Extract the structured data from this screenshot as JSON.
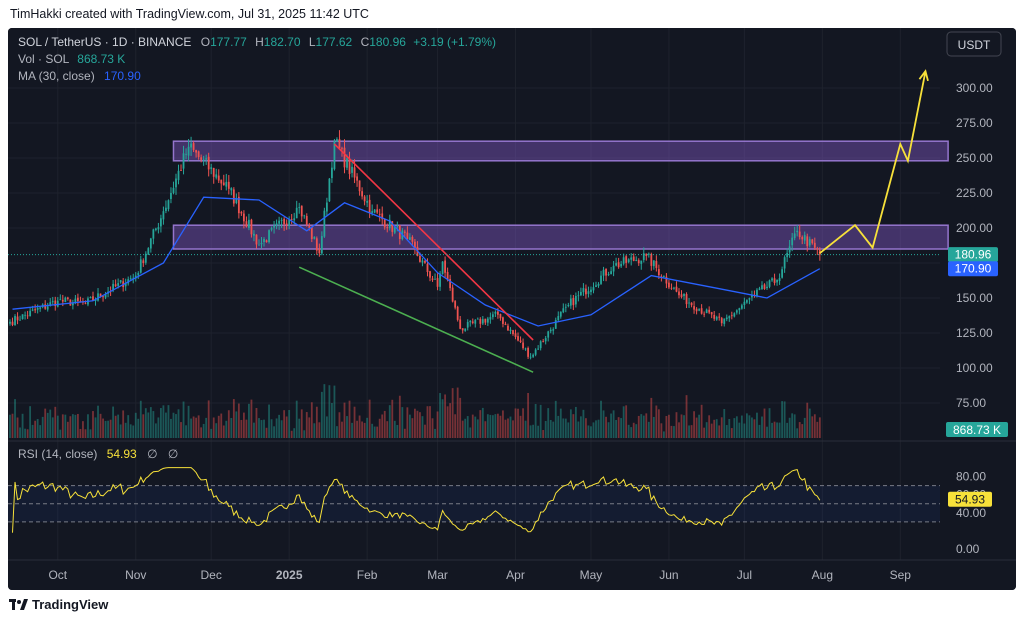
{
  "attribution": "TimHakki created with TradingView.com, Jul 31, 2025 11:42 UTC",
  "brand": "TradingView",
  "currency_button": "USDT",
  "header": {
    "symbol": "SOL / TetherUS · 1D · BINANCE",
    "o_label": "O",
    "o_value": "177.77",
    "h_label": "H",
    "h_value": "182.70",
    "l_label": "L",
    "l_value": "177.62",
    "c_label": "C",
    "c_value": "180.96",
    "change": "+3.19 (+1.79%)",
    "vol_label": "Vol · SOL",
    "vol_value": "868.73 K",
    "ma_label": "MA (30, close)",
    "ma_value": "170.90"
  },
  "rsi_header": {
    "label": "RSI (14, close)",
    "value": "54.93",
    "sym1": "∅",
    "sym2": "∅"
  },
  "price_tags": {
    "close": "180.96",
    "ma": "170.90",
    "volume": "868.73 K",
    "rsi": "54.93"
  },
  "colors": {
    "up": "#26a69a",
    "down": "#ef5350",
    "ma": "#2962ff",
    "rsi": "#f7e13a",
    "zone": "#7e57c2",
    "resistance": "#f23645",
    "support": "#4caf50",
    "projection": "#f7e13a"
  },
  "chart_data": {
    "type": "candlestick",
    "symbol": "SOL / TetherUS",
    "interval": "1D",
    "price_axis": {
      "ticks": [
        "300.00",
        "275.00",
        "250.00",
        "225.00",
        "200.00",
        "175.00",
        "150.00",
        "125.00",
        "100.00",
        "75.00"
      ],
      "range": [
        60,
        320
      ]
    },
    "time_axis": {
      "labels": [
        "Oct",
        "Nov",
        "Dec",
        "2025",
        "Feb",
        "Mar",
        "Apr",
        "May",
        "Jun",
        "Jul",
        "Aug",
        "Sep"
      ]
    },
    "rsi": {
      "ticks": [
        "80.00",
        "60.00",
        "40.00",
        "0.00"
      ],
      "bands": [
        70,
        30
      ],
      "mid": 50,
      "last": 54.93
    },
    "zones": [
      {
        "name": "upper resistance zone",
        "low": 248,
        "high": 262,
        "start": "2024-11-16",
        "end": "2025-09-20"
      },
      {
        "name": "lower resistance zone",
        "low": 185,
        "high": 202,
        "start": "2024-11-16",
        "end": "2025-09-20"
      }
    ],
    "trendlines": [
      {
        "type": "resistance",
        "from": {
          "date": "2025-01-19",
          "price": 260
        },
        "to": {
          "date": "2025-04-08",
          "price": 120
        }
      },
      {
        "type": "support",
        "from": {
          "date": "2025-01-05",
          "price": 172
        },
        "to": {
          "date": "2025-04-08",
          "price": 97
        }
      }
    ],
    "projection": [
      {
        "date": "2025-07-31",
        "price": 182
      },
      {
        "date": "2025-08-14",
        "price": 202
      },
      {
        "date": "2025-08-21",
        "price": 186
      },
      {
        "date": "2025-09-01",
        "price": 260
      },
      {
        "date": "2025-09-04",
        "price": 248
      },
      {
        "date": "2025-09-11",
        "price": 312
      }
    ],
    "key_points": [
      {
        "date": "2024-09-12",
        "close": 133
      },
      {
        "date": "2024-10-01",
        "close": 148
      },
      {
        "date": "2024-10-12",
        "close": 146
      },
      {
        "date": "2024-11-01",
        "close": 166
      },
      {
        "date": "2024-11-12",
        "close": 212
      },
      {
        "date": "2024-11-22",
        "close": 258
      },
      {
        "date": "2024-12-08",
        "close": 228
      },
      {
        "date": "2024-12-20",
        "close": 188
      },
      {
        "date": "2025-01-05",
        "close": 215
      },
      {
        "date": "2025-01-13",
        "close": 182
      },
      {
        "date": "2025-01-19",
        "close": 262
      },
      {
        "date": "2025-02-03",
        "close": 212
      },
      {
        "date": "2025-02-17",
        "close": 192
      },
      {
        "date": "2025-03-01",
        "close": 158
      },
      {
        "date": "2025-03-03",
        "close": 176
      },
      {
        "date": "2025-03-10",
        "close": 128
      },
      {
        "date": "2025-03-25",
        "close": 138
      },
      {
        "date": "2025-04-07",
        "close": 108
      },
      {
        "date": "2025-04-22",
        "close": 145
      },
      {
        "date": "2025-05-10",
        "close": 173
      },
      {
        "date": "2025-05-23",
        "close": 180
      },
      {
        "date": "2025-06-05",
        "close": 152
      },
      {
        "date": "2025-06-22",
        "close": 132
      },
      {
        "date": "2025-07-05",
        "close": 152
      },
      {
        "date": "2025-07-14",
        "close": 163
      },
      {
        "date": "2025-07-22",
        "close": 198
      },
      {
        "date": "2025-07-31",
        "close": 180.96
      }
    ],
    "ma30_points": [
      {
        "date": "2024-09-13",
        "value": 142
      },
      {
        "date": "2024-10-15",
        "value": 148
      },
      {
        "date": "2024-11-12",
        "value": 175
      },
      {
        "date": "2024-11-28",
        "value": 222
      },
      {
        "date": "2024-12-20",
        "value": 220
      },
      {
        "date": "2025-01-08",
        "value": 198
      },
      {
        "date": "2025-01-23",
        "value": 218
      },
      {
        "date": "2025-02-10",
        "value": 205
      },
      {
        "date": "2025-03-01",
        "value": 168
      },
      {
        "date": "2025-03-20",
        "value": 145
      },
      {
        "date": "2025-04-10",
        "value": 130
      },
      {
        "date": "2025-05-01",
        "value": 138
      },
      {
        "date": "2025-05-25",
        "value": 166
      },
      {
        "date": "2025-06-20",
        "value": 157
      },
      {
        "date": "2025-07-10",
        "value": 150
      },
      {
        "date": "2025-07-31",
        "value": 170.9
      }
    ],
    "volume_last": "868.73 K"
  }
}
